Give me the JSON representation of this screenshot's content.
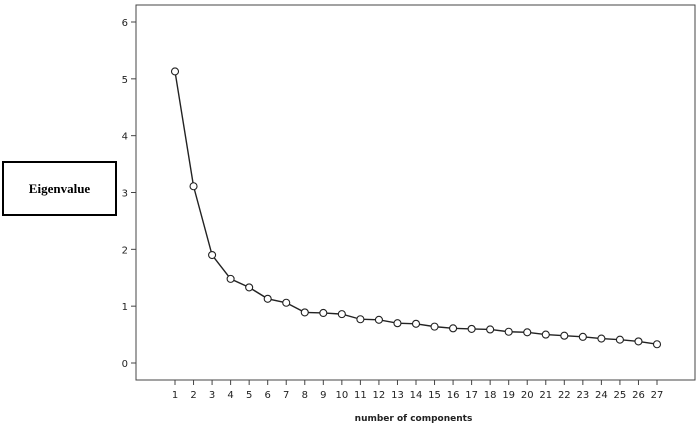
{
  "chart_data": {
    "type": "line",
    "xlabel": "number of components",
    "ylabel": "Eigenvalue",
    "x": [
      1,
      2,
      3,
      4,
      5,
      6,
      7,
      8,
      9,
      10,
      11,
      12,
      13,
      14,
      15,
      16,
      17,
      18,
      19,
      20,
      21,
      22,
      23,
      24,
      25,
      26,
      27
    ],
    "series": [
      {
        "values": [
          5.13,
          3.11,
          1.9,
          1.48,
          1.33,
          1.13,
          1.06,
          0.89,
          0.88,
          0.86,
          0.77,
          0.76,
          0.7,
          0.69,
          0.64,
          0.61,
          0.6,
          0.59,
          0.55,
          0.54,
          0.5,
          0.48,
          0.46,
          0.43,
          0.41,
          0.38,
          0.33
        ]
      }
    ],
    "yticks": [
      0,
      1,
      2,
      3,
      4,
      5,
      6
    ],
    "ylim": [
      0,
      6
    ],
    "grid": false,
    "markers": "open-circle",
    "colors": {
      "line": "#222222",
      "marker_stroke": "#222222",
      "frame": "#444444"
    }
  }
}
